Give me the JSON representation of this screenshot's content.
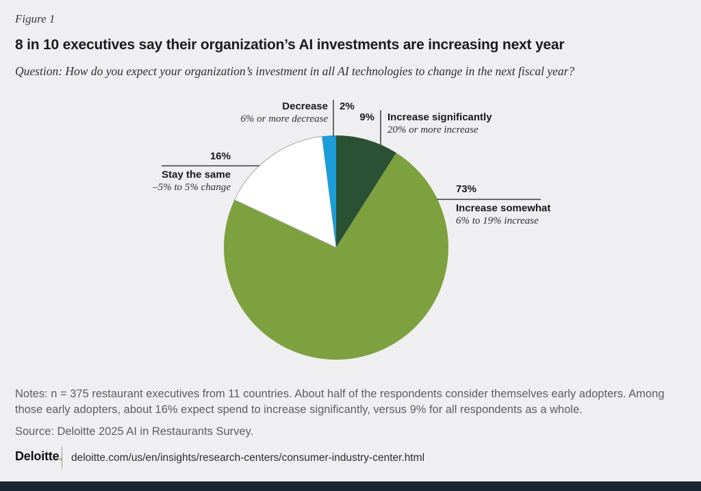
{
  "figure_label": "Figure 1",
  "title": "8 in 10 executives say their organization’s AI investments are increasing next year",
  "question": "Question: How do you expect your organization’s investment in all AI technologies to change in the next fiscal year?",
  "chart_data": {
    "type": "pie",
    "unit": "%",
    "start_angle_deg": 0,
    "direction": "clockwise",
    "legend_position": "callout-labels",
    "slices": [
      {
        "id": "increase-significantly",
        "label": "Increase significantly",
        "sublabel": "20% or more increase",
        "value": 9,
        "display": "9%",
        "color": "#2b5134"
      },
      {
        "id": "increase-somewhat",
        "label": "Increase somewhat",
        "sublabel": "6% to 19% increase",
        "value": 73,
        "display": "73%",
        "color": "#7da13e"
      },
      {
        "id": "stay-the-same",
        "label": "Stay the same",
        "sublabel": "–5% to 5% change",
        "value": 16,
        "display": "16%",
        "color": "#ffffff"
      },
      {
        "id": "decrease",
        "label": "Decrease",
        "sublabel": "6% or more decrease",
        "value": 2,
        "display": "2%",
        "color": "#1b9dd9"
      }
    ]
  },
  "notes": "Notes: n = 375 restaurant executives from 11 countries. About half of the respondents consider themselves early adopters. Among those early adopters, about 16% expect spend to increase significantly, versus 9% for all respondents as a whole.",
  "source": "Source: Deloitte 2025 AI in Restaurants Survey.",
  "footer": {
    "brand": "Deloitte",
    "brand_period": ".",
    "url": "deloitte.com/us/en/insights/research-centers/consumer-industry-center.html"
  },
  "colors": {
    "background": "#efeef0",
    "bottom_bar": "#1b2433",
    "brand_accent": "#86bc25"
  }
}
